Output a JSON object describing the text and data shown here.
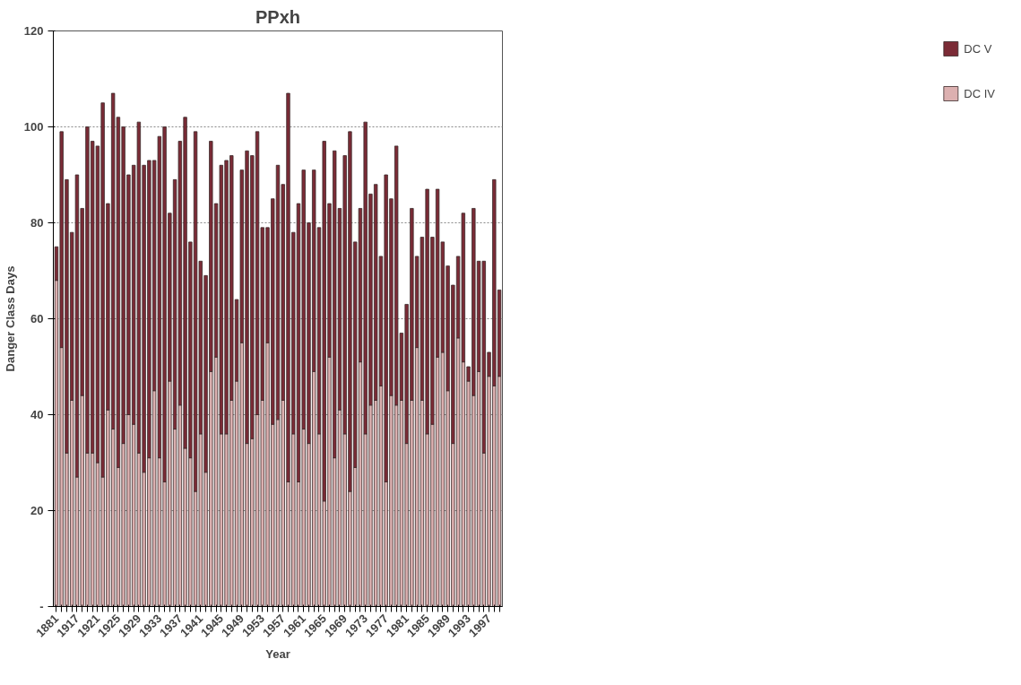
{
  "chart_data": {
    "type": "bar",
    "title": "PPxh",
    "xlabel": "Year",
    "ylabel": "Danger Class Days",
    "stacked": true,
    "categories": [
      "1881",
      null,
      null,
      null,
      "1917",
      null,
      null,
      null,
      "1921",
      null,
      null,
      null,
      "1925",
      null,
      null,
      null,
      "1929",
      null,
      null,
      null,
      "1933",
      null,
      null,
      null,
      "1937",
      null,
      null,
      null,
      "1941",
      null,
      null,
      null,
      "1945",
      null,
      null,
      null,
      "1949",
      null,
      null,
      null,
      "1953",
      null,
      null,
      null,
      "1957",
      null,
      null,
      null,
      "1961",
      null,
      null,
      null,
      "1965",
      null,
      null,
      null,
      "1969",
      null,
      null,
      null,
      "1973",
      null,
      null,
      null,
      "1977",
      null,
      null,
      null,
      "1981",
      null,
      null,
      null,
      "1985",
      null,
      null,
      null,
      "1989",
      null,
      null,
      null,
      "1993",
      null,
      null,
      null,
      "1997",
      null,
      null
    ],
    "series": [
      {
        "name": "DC IV",
        "color": "#dcb0b0",
        "values": [
          68,
          54,
          32,
          43,
          27,
          44,
          32,
          32,
          30,
          27,
          41,
          37,
          29,
          34,
          40,
          38,
          32,
          28,
          31,
          45,
          31,
          26,
          47,
          37,
          42,
          33,
          31,
          24,
          36,
          28,
          49,
          52,
          36,
          36,
          43,
          47,
          55,
          34,
          35,
          40,
          43,
          55,
          38,
          39,
          43,
          26,
          36,
          26,
          37,
          34,
          49,
          36,
          22,
          52,
          31,
          41,
          36,
          24,
          29,
          51,
          36,
          42,
          43,
          46,
          26,
          44,
          42,
          43,
          34,
          43,
          54,
          43,
          36,
          38,
          52,
          53,
          45,
          34,
          56,
          51,
          47,
          44,
          49,
          32,
          48,
          46,
          48
        ]
      },
      {
        "name": "DC V",
        "color": "#7b2b36",
        "values": [
          7,
          45,
          57,
          35,
          63,
          39,
          68,
          65,
          66,
          78,
          43,
          70,
          73,
          66,
          50,
          54,
          69,
          64,
          62,
          48,
          67,
          74,
          35,
          52,
          55,
          69,
          45,
          75,
          36,
          41,
          48,
          32,
          56,
          57,
          51,
          17,
          36,
          61,
          59,
          59,
          36,
          24,
          47,
          53,
          45,
          81,
          42,
          58,
          54,
          46,
          42,
          43,
          75,
          32,
          64,
          42,
          58,
          75,
          47,
          32,
          65,
          44,
          45,
          27,
          64,
          41,
          54,
          14,
          29,
          40,
          19,
          34,
          51,
          39,
          35,
          23,
          26,
          33,
          17,
          31,
          3,
          39,
          23,
          40,
          5,
          43,
          18
        ]
      }
    ],
    "ylim": [
      0,
      120
    ],
    "yticks": [
      {
        "value": 0,
        "label": "-"
      },
      20,
      40,
      60,
      80,
      100,
      120
    ],
    "grid": "y",
    "legend": "right"
  }
}
